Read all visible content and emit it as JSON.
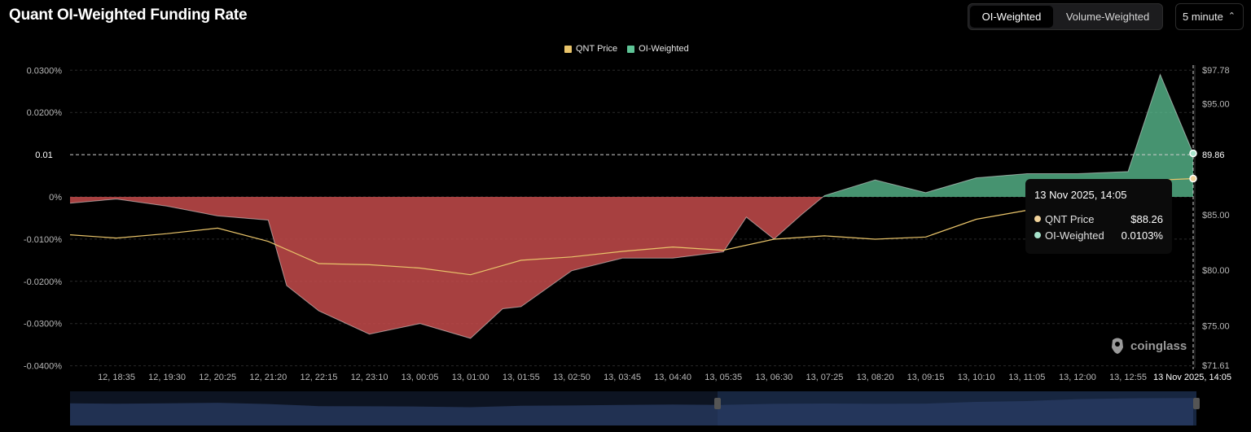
{
  "header": {
    "title": "Quant OI-Weighted Funding Rate"
  },
  "toggle": {
    "options": [
      "OI-Weighted",
      "Volume-Weighted"
    ],
    "active": "OI-Weighted"
  },
  "interval": {
    "value": "5 minute"
  },
  "legend": [
    {
      "label": "QNT Price",
      "color": "#e9c46a"
    },
    {
      "label": "OI-Weighted",
      "color": "#5ec496"
    }
  ],
  "tooltip": {
    "title": "13 Nov 2025, 14:05",
    "rows": [
      {
        "name": "QNT Price",
        "value": "$88.26",
        "color": "#f1d39b"
      },
      {
        "name": "OI-Weighted",
        "value": "0.0103%",
        "color": "#a7e3cb"
      }
    ]
  },
  "crosshair": {
    "left_label": "0.01",
    "right_label": "89.86",
    "x_label": "13 Nov 2025, 14:05"
  },
  "watermark": {
    "text": "coinglass"
  },
  "colors": {
    "positive": "#5ec496",
    "negative": "#c44b4b",
    "price": "#e9c46a",
    "grid": "#2a2a2a",
    "axis_text": "#b8b8b8"
  },
  "chart_data": {
    "type": "area",
    "x_ticks": [
      "12, 18:35",
      "12, 19:30",
      "12, 20:25",
      "12, 21:20",
      "12, 22:15",
      "12, 23:10",
      "13, 00:05",
      "13, 01:00",
      "13, 01:55",
      "13, 02:50",
      "13, 03:45",
      "13, 04:40",
      "13, 05:35",
      "13, 06:30",
      "13, 07:25",
      "13, 08:20",
      "13, 09:15",
      "13, 10:10",
      "13, 11:05",
      "13, 12:00",
      "13, 12:55"
    ],
    "y_left": {
      "ticks": [
        "0.0300%",
        "0.0200%",
        "0%",
        "-0.0100%",
        "-0.0200%",
        "-0.0300%",
        "-0.0400%"
      ],
      "tick_values": [
        0.03,
        0.02,
        0,
        -0.01,
        -0.02,
        -0.03,
        -0.04
      ],
      "ylim": [
        -0.04,
        0.03
      ]
    },
    "y_right": {
      "ticks": [
        "$97.78",
        "$95.00",
        "$85.00",
        "$80.00",
        "$75.00",
        "$71.61"
      ],
      "tick_values": [
        97.78,
        95,
        85,
        80,
        75,
        71.61
      ],
      "ylim": [
        71.61,
        97.78
      ]
    },
    "series": [
      {
        "name": "QNT Price",
        "axis": "right",
        "x": [
          "12, 18:00",
          "12, 18:35",
          "12, 19:30",
          "12, 20:25",
          "12, 21:20",
          "12, 22:15",
          "12, 23:10",
          "13, 00:05",
          "13, 01:00",
          "13, 01:55",
          "13, 02:50",
          "13, 03:45",
          "13, 04:40",
          "13, 05:35",
          "13, 06:30",
          "13, 07:25",
          "13, 08:20",
          "13, 09:15",
          "13, 10:10",
          "13, 11:05",
          "13, 12:00",
          "13, 12:55",
          "13, 14:05"
        ],
        "values": [
          83.2,
          82.9,
          83.3,
          83.8,
          82.6,
          80.6,
          80.5,
          80.2,
          79.6,
          80.9,
          81.2,
          81.7,
          82.1,
          81.8,
          82.8,
          83.1,
          82.8,
          83.0,
          84.6,
          85.4,
          87.2,
          88.0,
          88.26
        ]
      },
      {
        "name": "OI-Weighted",
        "axis": "left",
        "x": [
          "12, 18:00",
          "12, 18:35",
          "12, 19:30",
          "12, 20:25",
          "12, 21:20",
          "12, 21:40",
          "12, 22:15",
          "12, 23:10",
          "13, 00:05",
          "13, 01:00",
          "13, 01:35",
          "13, 01:55",
          "13, 02:50",
          "13, 03:45",
          "13, 04:40",
          "13, 05:35",
          "13, 06:00",
          "13, 06:30",
          "13, 07:00",
          "13, 07:25",
          "13, 08:20",
          "13, 09:15",
          "13, 10:10",
          "13, 11:05",
          "13, 12:00",
          "13, 12:55",
          "13, 13:30",
          "13, 14:05"
        ],
        "values": [
          -0.0015,
          -0.0005,
          -0.0022,
          -0.0045,
          -0.0055,
          -0.021,
          -0.027,
          -0.0325,
          -0.03,
          -0.0335,
          -0.0265,
          -0.026,
          -0.0175,
          -0.0145,
          -0.0145,
          -0.013,
          -0.0048,
          -0.01,
          -0.0042,
          0.0003,
          0.004,
          0.001,
          0.0045,
          0.0055,
          0.0055,
          0.006,
          0.029,
          0.0103
        ]
      }
    ]
  }
}
